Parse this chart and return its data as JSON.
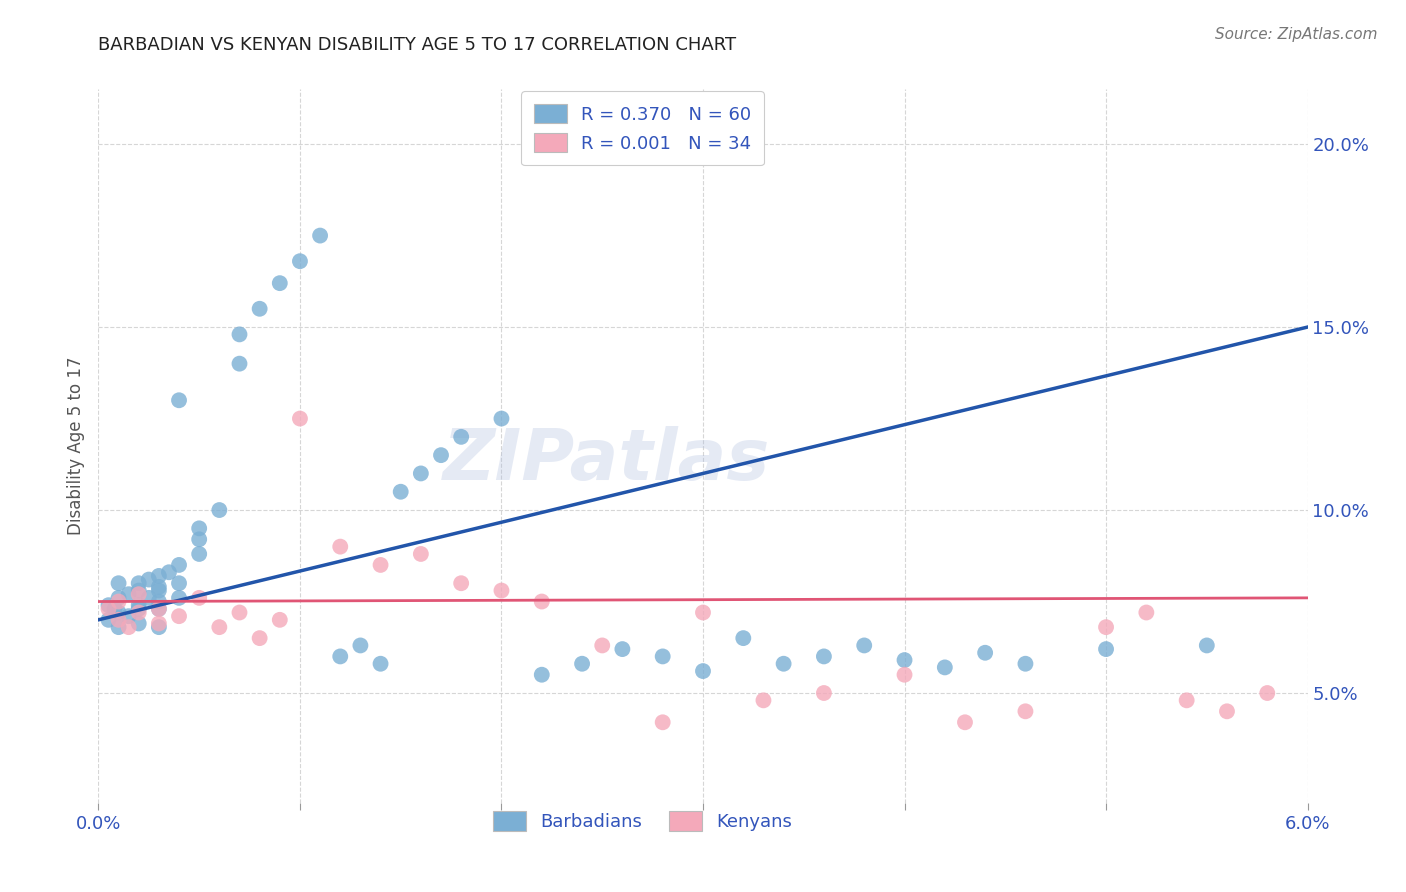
{
  "title": "BARBADIAN VS KENYAN DISABILITY AGE 5 TO 17 CORRELATION CHART",
  "source_text": "Source: ZipAtlas.com",
  "ylabel": "Disability Age 5 to 17",
  "xlim": [
    0.0,
    0.06
  ],
  "ylim": [
    0.02,
    0.215
  ],
  "yticks": [
    0.05,
    0.1,
    0.15,
    0.2
  ],
  "ytick_labels": [
    "5.0%",
    "10.0%",
    "15.0%",
    "20.0%"
  ],
  "xticks": [
    0.0,
    0.01,
    0.02,
    0.03,
    0.04,
    0.05,
    0.06
  ],
  "xtick_labels": [
    "0.0%",
    "",
    "",
    "",
    "",
    "",
    "6.0%"
  ],
  "blue_color": "#7BAFD4",
  "pink_color": "#F4A9BA",
  "line_blue": "#2255AA",
  "line_pink": "#E05575",
  "legend_blue_R": "R = 0.370",
  "legend_blue_N": "N = 60",
  "legend_pink_R": "R = 0.001",
  "legend_pink_N": "N = 34",
  "barbadian_label": "Barbadians",
  "kenyan_label": "Kenyans",
  "watermark": "ZIPatlas",
  "background_color": "#FFFFFF",
  "grid_color": "#CCCCCC",
  "title_color": "#222222",
  "axis_label_color": "#555555",
  "tick_color": "#3355BB",
  "legend_text_color": "#3355BB",
  "blue_line_x": [
    0.0,
    0.06
  ],
  "blue_line_y": [
    0.07,
    0.15
  ],
  "pink_line_x": [
    0.0,
    0.06
  ],
  "pink_line_y": [
    0.075,
    0.076
  ],
  "barbadians_x": [
    0.0005,
    0.0005,
    0.0008,
    0.001,
    0.001,
    0.001,
    0.001,
    0.0015,
    0.0015,
    0.002,
    0.002,
    0.002,
    0.002,
    0.002,
    0.0025,
    0.0025,
    0.003,
    0.003,
    0.003,
    0.003,
    0.003,
    0.003,
    0.0035,
    0.004,
    0.004,
    0.004,
    0.004,
    0.005,
    0.005,
    0.005,
    0.006,
    0.007,
    0.007,
    0.008,
    0.009,
    0.01,
    0.011,
    0.012,
    0.013,
    0.014,
    0.015,
    0.016,
    0.017,
    0.018,
    0.02,
    0.022,
    0.024,
    0.026,
    0.028,
    0.03,
    0.032,
    0.034,
    0.036,
    0.038,
    0.04,
    0.042,
    0.044,
    0.046,
    0.05,
    0.055
  ],
  "barbadians_y": [
    0.074,
    0.07,
    0.073,
    0.068,
    0.072,
    0.076,
    0.08,
    0.071,
    0.077,
    0.069,
    0.074,
    0.078,
    0.073,
    0.08,
    0.076,
    0.081,
    0.068,
    0.073,
    0.078,
    0.082,
    0.075,
    0.079,
    0.083,
    0.076,
    0.08,
    0.085,
    0.13,
    0.088,
    0.092,
    0.095,
    0.1,
    0.14,
    0.148,
    0.155,
    0.162,
    0.168,
    0.175,
    0.06,
    0.063,
    0.058,
    0.105,
    0.11,
    0.115,
    0.12,
    0.125,
    0.055,
    0.058,
    0.062,
    0.06,
    0.056,
    0.065,
    0.058,
    0.06,
    0.063,
    0.059,
    0.057,
    0.061,
    0.058,
    0.062,
    0.063
  ],
  "kenyans_x": [
    0.0005,
    0.001,
    0.001,
    0.0015,
    0.002,
    0.002,
    0.003,
    0.003,
    0.004,
    0.005,
    0.006,
    0.007,
    0.008,
    0.009,
    0.01,
    0.012,
    0.014,
    0.016,
    0.018,
    0.02,
    0.022,
    0.025,
    0.028,
    0.03,
    0.033,
    0.036,
    0.04,
    0.043,
    0.046,
    0.05,
    0.052,
    0.054,
    0.056,
    0.058
  ],
  "kenyans_y": [
    0.073,
    0.07,
    0.075,
    0.068,
    0.072,
    0.077,
    0.069,
    0.073,
    0.071,
    0.076,
    0.068,
    0.072,
    0.065,
    0.07,
    0.125,
    0.09,
    0.085,
    0.088,
    0.08,
    0.078,
    0.075,
    0.063,
    0.042,
    0.072,
    0.048,
    0.05,
    0.055,
    0.042,
    0.045,
    0.068,
    0.072,
    0.048,
    0.045,
    0.05
  ]
}
